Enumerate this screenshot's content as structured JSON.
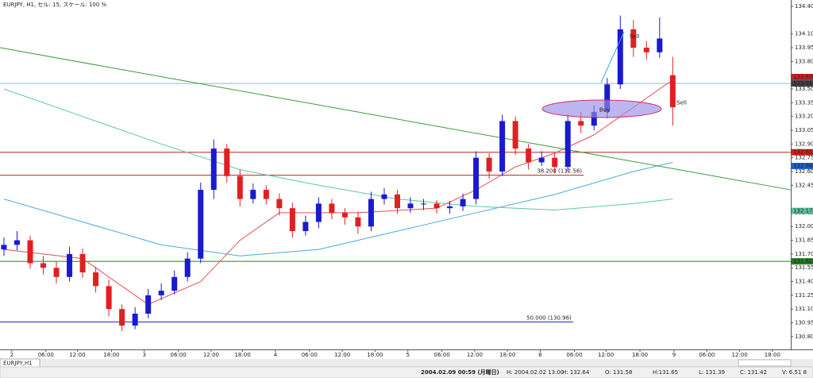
{
  "chart_data": {
    "type": "candlestick",
    "title": "EURJPY, H1, セル: 15, スケール: 100 %",
    "up_color": "#1a1ad0",
    "down_color": "#e02020",
    "open": [
      131.75,
      131.8,
      131.85,
      131.6,
      131.55,
      131.45,
      131.7,
      131.5,
      131.35,
      131.1,
      130.92,
      131.05,
      131.25,
      131.3,
      131.45,
      131.65,
      132.4,
      132.85,
      132.55,
      132.3,
      132.4,
      132.3,
      132.2,
      131.95,
      132.05,
      132.25,
      132.15,
      132.1,
      132.0,
      132.3,
      132.35,
      132.2,
      132.25,
      132.25,
      132.2,
      132.22,
      132.3,
      132.75,
      132.6,
      133.15,
      132.85,
      132.7,
      132.75,
      132.65,
      133.15,
      133.1,
      133.25,
      133.55,
      134.15,
      133.95,
      133.9,
      133.65
    ],
    "high": [
      131.88,
      131.95,
      131.9,
      131.68,
      131.62,
      131.78,
      131.76,
      131.56,
      131.42,
      131.15,
      131.12,
      131.32,
      131.38,
      131.52,
      131.72,
      132.48,
      132.95,
      132.9,
      132.62,
      132.47,
      132.45,
      132.36,
      132.26,
      132.12,
      132.32,
      132.3,
      132.2,
      132.16,
      132.38,
      132.42,
      132.4,
      132.32,
      132.3,
      132.29,
      132.28,
      132.36,
      132.82,
      132.8,
      133.22,
      133.2,
      132.9,
      132.82,
      132.8,
      133.22,
      133.25,
      133.32,
      133.62,
      134.3,
      134.25,
      134.02,
      134.28,
      133.85
    ],
    "low": [
      131.68,
      131.74,
      131.54,
      131.48,
      131.38,
      131.4,
      131.44,
      131.28,
      131.02,
      130.86,
      130.88,
      131.0,
      131.2,
      131.26,
      131.4,
      131.6,
      132.3,
      132.48,
      132.22,
      132.25,
      132.24,
      132.12,
      131.88,
      131.9,
      131.98,
      132.08,
      132.02,
      131.92,
      131.95,
      132.24,
      132.14,
      132.15,
      132.18,
      132.14,
      132.14,
      132.17,
      132.24,
      132.52,
      132.55,
      132.78,
      132.62,
      132.66,
      132.58,
      132.6,
      133.02,
      133.05,
      133.18,
      133.5,
      133.85,
      133.82,
      133.84,
      133.1
    ],
    "close": [
      131.8,
      131.85,
      131.6,
      131.55,
      131.45,
      131.7,
      131.5,
      131.35,
      131.1,
      130.92,
      131.05,
      131.25,
      131.3,
      131.45,
      131.65,
      132.4,
      132.85,
      132.55,
      132.3,
      132.4,
      132.3,
      132.2,
      131.95,
      132.05,
      132.25,
      132.15,
      132.1,
      132.0,
      132.3,
      132.35,
      132.2,
      132.25,
      132.25,
      132.2,
      132.22,
      132.3,
      132.75,
      132.6,
      133.15,
      132.85,
      132.7,
      132.75,
      132.65,
      133.15,
      133.1,
      133.25,
      133.55,
      134.15,
      133.95,
      133.9,
      134.05,
      133.3
    ],
    "xlim": [
      -0.3,
      60
    ],
    "ylim": [
      130.66,
      134.47
    ],
    "xticks": [
      {
        "value": 0.6,
        "label": "2"
      },
      {
        "value": 3.2,
        "label": "06:00"
      },
      {
        "value": 5.6,
        "label": "12:00"
      },
      {
        "value": 8.2,
        "label": "18:00"
      },
      {
        "value": 10.7,
        "label": "3"
      },
      {
        "value": 13.3,
        "label": "06:00"
      },
      {
        "value": 15.8,
        "label": "12:00"
      },
      {
        "value": 18.2,
        "label": "18:00"
      },
      {
        "value": 20.7,
        "label": "4"
      },
      {
        "value": 23.3,
        "label": "06:00"
      },
      {
        "value": 25.8,
        "label": "12:00"
      },
      {
        "value": 28.3,
        "label": "18:00"
      },
      {
        "value": 30.8,
        "label": "5"
      },
      {
        "value": 33.4,
        "label": "06:00"
      },
      {
        "value": 35.9,
        "label": "12:00"
      },
      {
        "value": 38.4,
        "label": "18:00"
      },
      {
        "value": 40.9,
        "label": "6"
      },
      {
        "value": 43.5,
        "label": "06:00"
      },
      {
        "value": 45.9,
        "label": "12:00"
      },
      {
        "value": 48.5,
        "label": "18:00"
      },
      {
        "value": 51.1,
        "label": "9"
      },
      {
        "value": 53.6,
        "label": "06:00"
      },
      {
        "value": 56.1,
        "label": "12:00"
      },
      {
        "value": 58.6,
        "label": "18:00"
      }
    ],
    "yticks": [
      {
        "value": 134.4,
        "label": "134.40"
      },
      {
        "value": 134.1,
        "label": "134.10"
      },
      {
        "value": 133.95,
        "label": "133.95"
      },
      {
        "value": 133.8,
        "label": "133.80"
      },
      {
        "value": 133.5,
        "label": "133.50"
      },
      {
        "value": 133.35,
        "label": "133.35"
      },
      {
        "value": 133.2,
        "label": "133.20"
      },
      {
        "value": 133.05,
        "label": "133.05"
      },
      {
        "value": 132.9,
        "label": "132.90"
      },
      {
        "value": 132.75,
        "label": "132.75"
      },
      {
        "value": 132.6,
        "label": "132.60"
      },
      {
        "value": 132.45,
        "label": "132.45"
      },
      {
        "value": 132.15,
        "label": "132.15"
      },
      {
        "value": 132.0,
        "label": "132.00"
      },
      {
        "value": 131.85,
        "label": "131.85"
      },
      {
        "value": 131.7,
        "label": "131.70"
      },
      {
        "value": 131.55,
        "label": "131.55"
      },
      {
        "value": 131.4,
        "label": "131.40"
      },
      {
        "value": 131.25,
        "label": "131.25"
      },
      {
        "value": 131.1,
        "label": "131.10"
      },
      {
        "value": 130.95,
        "label": "130.95"
      },
      {
        "value": 130.8,
        "label": "130.80"
      }
    ],
    "lines": [
      {
        "color": "#e05050",
        "x": [
          0,
          6,
          11,
          15,
          18,
          21,
          27,
          33,
          36,
          39,
          42,
          45,
          48,
          51
        ],
        "values": [
          131.75,
          131.65,
          131.15,
          131.4,
          131.85,
          132.15,
          132.15,
          132.2,
          132.4,
          132.65,
          132.8,
          133.0,
          133.3,
          133.6
        ]
      },
      {
        "color": "#4aa8e0",
        "x": [
          0,
          6,
          12,
          18,
          24,
          30,
          36,
          42,
          48,
          51
        ],
        "values": [
          132.3,
          132.05,
          131.8,
          131.68,
          131.75,
          131.95,
          132.15,
          132.35,
          132.6,
          132.7
        ]
      },
      {
        "color": "#5cc8a8",
        "x": [
          0,
          6,
          12,
          18,
          24,
          30,
          36,
          42,
          48,
          51
        ],
        "values": [
          133.5,
          133.2,
          132.9,
          132.62,
          132.45,
          132.3,
          132.22,
          132.18,
          132.25,
          132.3
        ]
      },
      {
        "color": "#3a9a3a",
        "x": [
          -0.3,
          60
        ],
        "values": [
          133.95,
          132.4
        ]
      }
    ],
    "levels": [
      {
        "value": 133.56,
        "color": "#8fb8e0",
        "x": [
          -0.3,
          60
        ]
      },
      {
        "value": 132.81,
        "color": "#c02020",
        "x": [
          -0.3,
          60
        ]
      },
      {
        "value": 132.56,
        "color": "#c02020",
        "x": [
          -0.3,
          44.2
        ],
        "label": "38.200 (132.56)"
      },
      {
        "value": 131.62,
        "color": "#208020",
        "x": [
          -0.3,
          60
        ]
      },
      {
        "value": 130.96,
        "color": "#2020c0",
        "x": [
          -0.3,
          43.4
        ],
        "label": "50.000 (130.96)"
      }
    ],
    "price_tags": [
      {
        "value": 133.63,
        "label": "133.63",
        "color": "#d02020"
      },
      {
        "value": 133.56,
        "label": "133.56",
        "color": "#404040"
      },
      {
        "value": 132.81,
        "label": "132.81",
        "color": "#d02020"
      },
      {
        "value": 132.66,
        "label": "132.66",
        "color": "#2060d0"
      },
      {
        "value": 132.17,
        "label": "132.17",
        "color": "#60c0a0"
      },
      {
        "value": 131.62,
        "label": "131.62",
        "color": "#208020"
      }
    ],
    "annotations": [
      {
        "text": "Sell",
        "x": 47.7,
        "y": 134.07,
        "color": "#d03030"
      },
      {
        "text": "Buy",
        "x": 45.4,
        "y": 133.27,
        "color": "#3060d0"
      },
      {
        "text": "Sell",
        "x": 51.3,
        "y": 133.35,
        "color": "#d03030"
      }
    ]
  },
  "ui": {
    "tab": "EURJPY,H1",
    "status": [
      "2004.02.09 00:59 (月曜日)",
      "H: 2004.02.02 13:00",
      "H: 132.64",
      "O: 131.58",
      "H:131.65",
      "L: 131.39",
      "C: 131.42",
      "V: 6.51 8"
    ]
  }
}
